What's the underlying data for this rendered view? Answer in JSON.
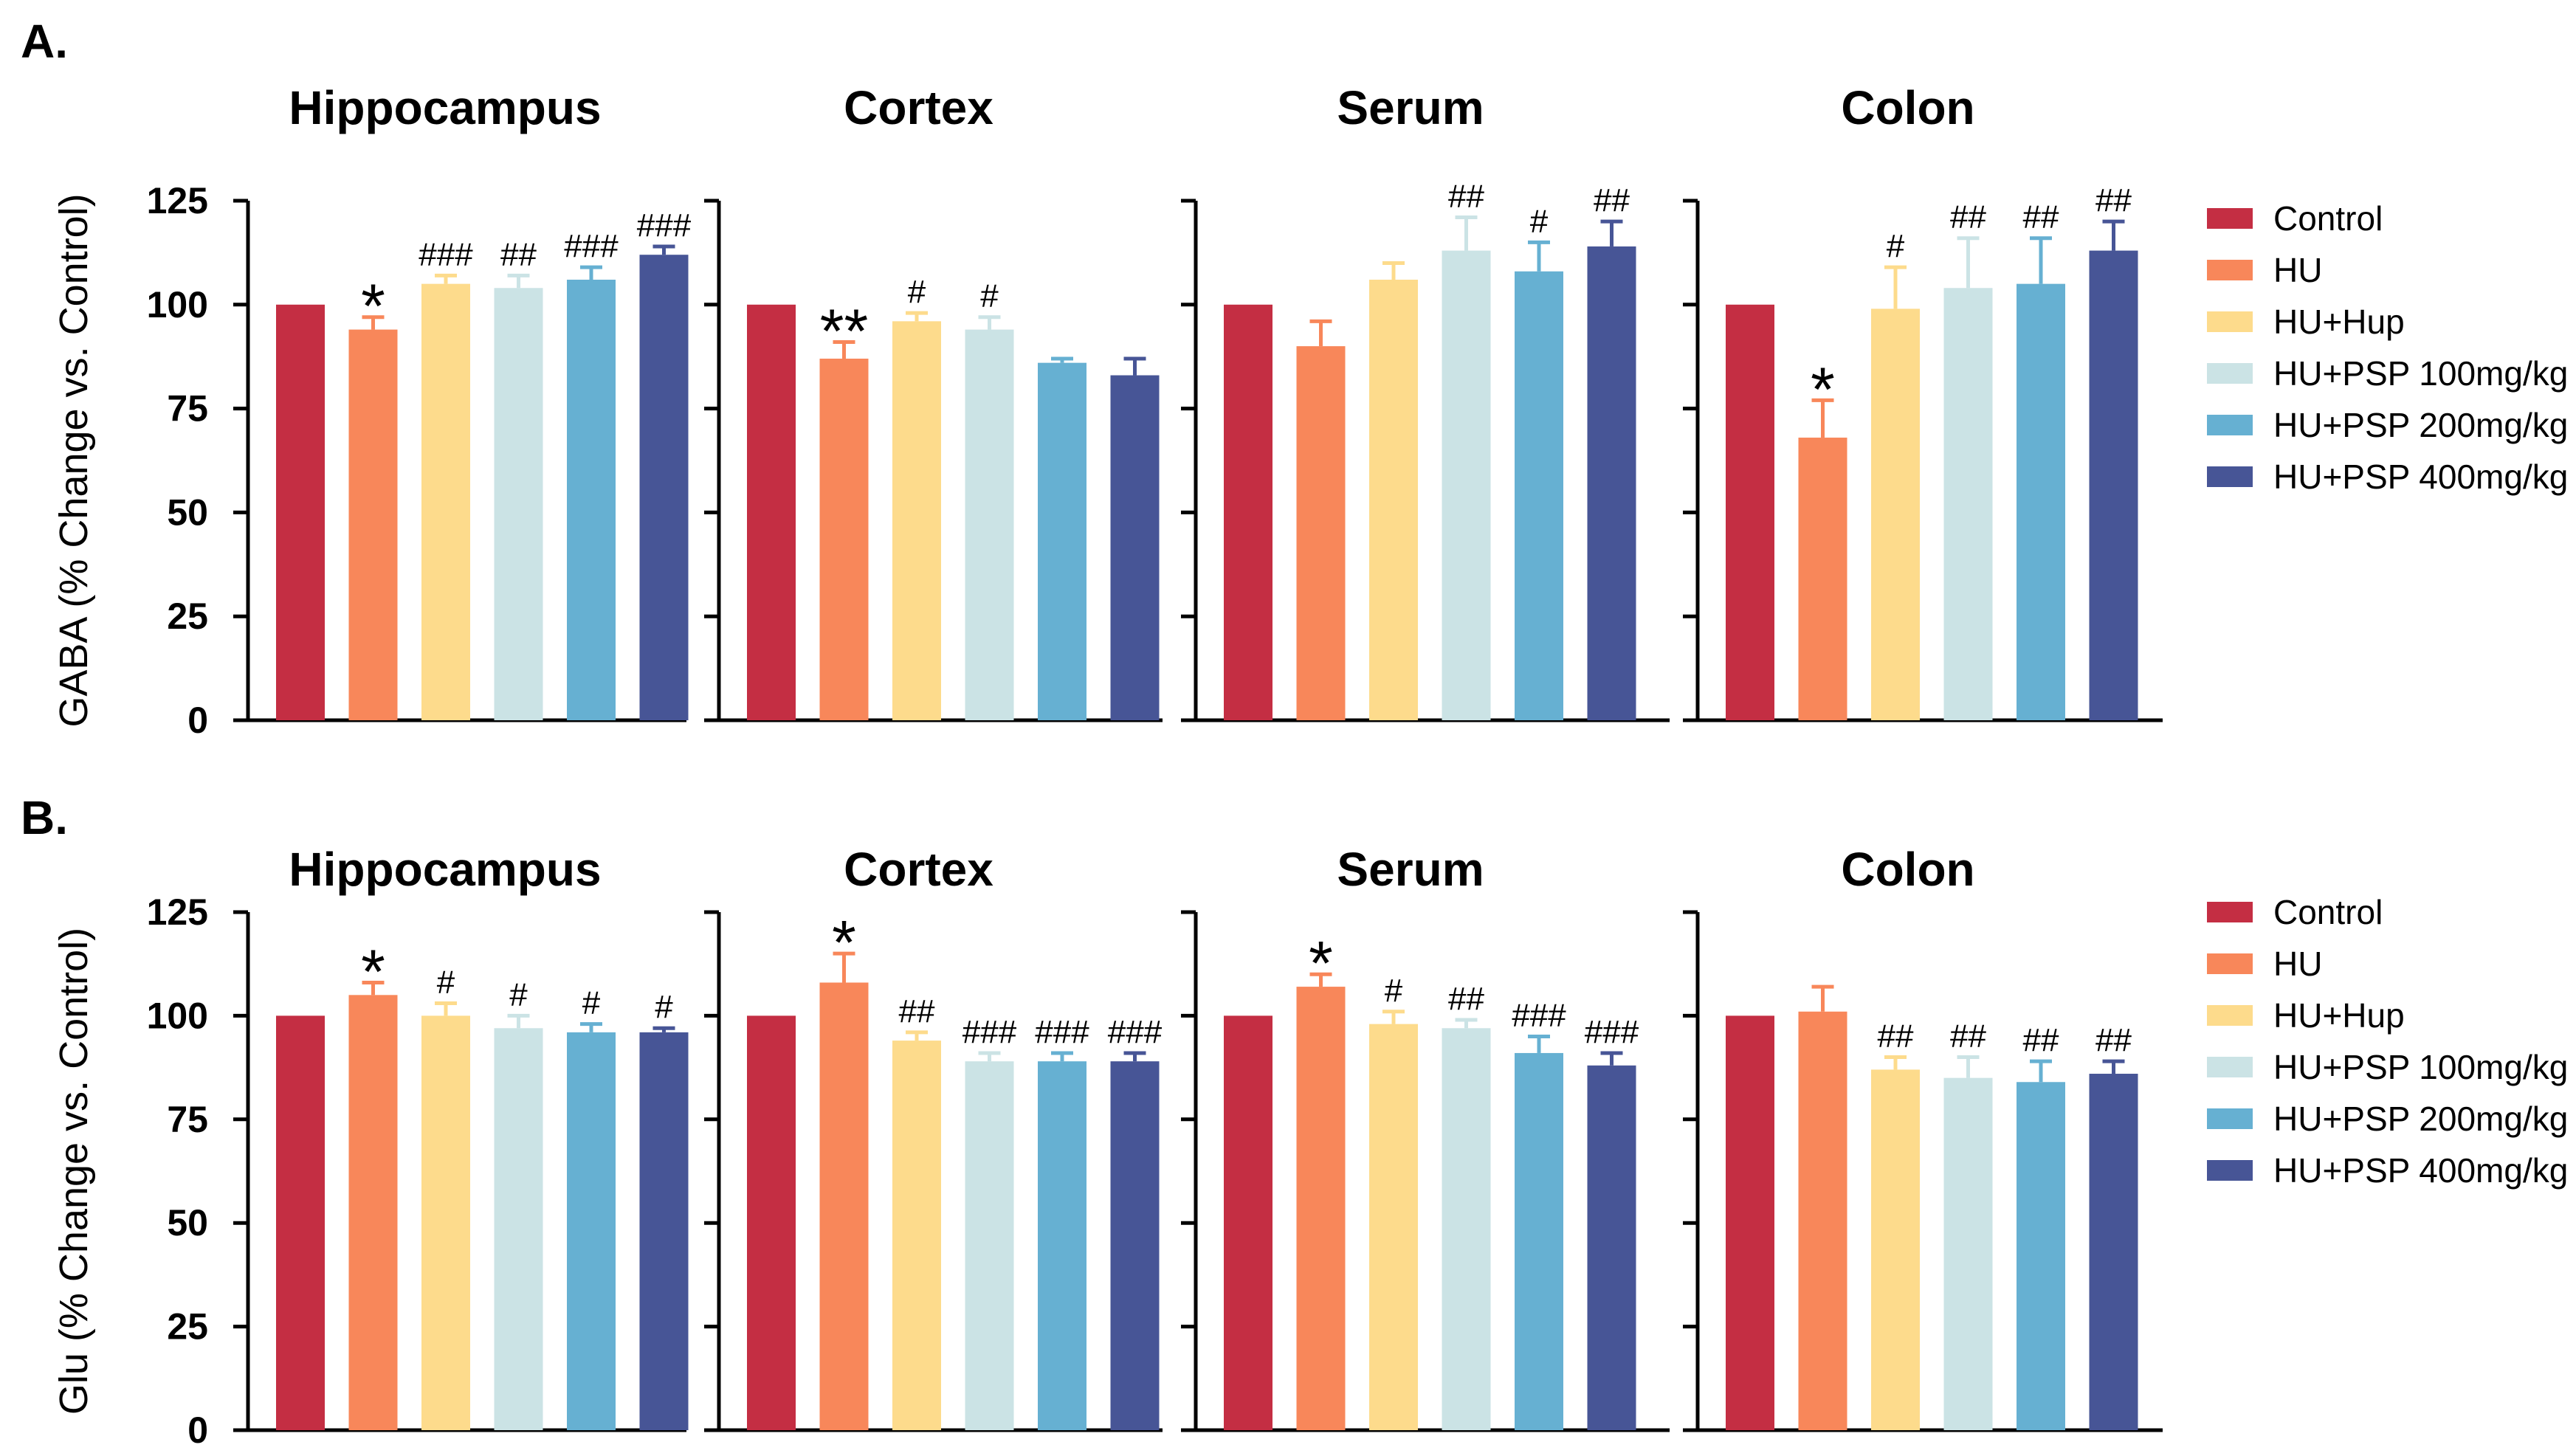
{
  "chart_data": [
    {
      "type": "bar",
      "panel_label": "A.",
      "ylabel": "GABA (% Change vs. Control)",
      "ylim": [
        0,
        125
      ],
      "yticks": [
        0,
        25,
        50,
        75,
        100,
        125
      ],
      "legend": [
        "Control",
        "HU",
        "HU+Hup",
        "HU+PSP 100mg/kg",
        "HU+PSP 200mg/kg",
        "HU+PSP 400mg/kg"
      ],
      "legend_position": "right",
      "colors": [
        "#c42e43",
        "#f8875a",
        "#fddb8c",
        "#cbe3e5",
        "#66b0d2",
        "#475596"
      ],
      "groups": [
        "Hippocampus",
        "Cortex",
        "Serum",
        "Colon"
      ],
      "series": [
        {
          "name": "Control",
          "values": [
            100,
            100,
            100,
            100
          ],
          "errors": [
            0,
            0,
            0,
            0
          ]
        },
        {
          "name": "HU",
          "values": [
            94,
            87,
            90,
            68
          ],
          "errors": [
            3,
            4,
            6,
            9
          ]
        },
        {
          "name": "HU+Hup",
          "values": [
            105,
            96,
            106,
            99
          ],
          "errors": [
            2,
            2,
            4,
            10
          ]
        },
        {
          "name": "HU+PSP 100mg/kg",
          "values": [
            104,
            94,
            113,
            104
          ],
          "errors": [
            3,
            3,
            8,
            12
          ]
        },
        {
          "name": "HU+PSP 200mg/kg",
          "values": [
            106,
            86,
            108,
            105
          ],
          "errors": [
            3,
            1,
            7,
            11
          ]
        },
        {
          "name": "HU+PSP 400mg/kg",
          "values": [
            112,
            83,
            114,
            113
          ],
          "errors": [
            2,
            4,
            6,
            7
          ]
        }
      ],
      "annotations": [
        [
          "",
          "*",
          "###",
          "##",
          "###",
          "###"
        ],
        [
          "",
          "**",
          "#",
          "#",
          "",
          ""
        ],
        [
          "",
          "",
          "",
          "##",
          "#",
          "##"
        ],
        [
          "",
          "*",
          "#",
          "##",
          "##",
          "##"
        ]
      ]
    },
    {
      "type": "bar",
      "panel_label": "B.",
      "ylabel": "Glu (% Change vs. Control)",
      "ylim": [
        0,
        125
      ],
      "yticks": [
        0,
        25,
        50,
        75,
        100,
        125
      ],
      "legend": [
        "Control",
        "HU",
        "HU+Hup",
        "HU+PSP 100mg/kg",
        "HU+PSP 200mg/kg",
        "HU+PSP 400mg/kg"
      ],
      "legend_position": "right",
      "colors": [
        "#c42e43",
        "#f8875a",
        "#fddb8c",
        "#cbe3e5",
        "#66b0d2",
        "#475596"
      ],
      "groups": [
        "Hippocampus",
        "Cortex",
        "Serum",
        "Colon"
      ],
      "series": [
        {
          "name": "Control",
          "values": [
            100,
            100,
            100,
            100
          ],
          "errors": [
            0,
            0,
            0,
            0
          ]
        },
        {
          "name": "HU",
          "values": [
            105,
            108,
            107,
            101
          ],
          "errors": [
            3,
            7,
            3,
            6
          ]
        },
        {
          "name": "HU+Hup",
          "values": [
            100,
            94,
            98,
            87
          ],
          "errors": [
            3,
            2,
            3,
            3
          ]
        },
        {
          "name": "HU+PSP 100mg/kg",
          "values": [
            97,
            89,
            97,
            85
          ],
          "errors": [
            3,
            2,
            2,
            5
          ]
        },
        {
          "name": "HU+PSP 200mg/kg",
          "values": [
            96,
            89,
            91,
            84
          ],
          "errors": [
            2,
            2,
            4,
            5
          ]
        },
        {
          "name": "HU+PSP 400mg/kg",
          "values": [
            96,
            89,
            88,
            86
          ],
          "errors": [
            1,
            2,
            3,
            3
          ]
        }
      ],
      "annotations": [
        [
          "",
          "*",
          "#",
          "#",
          "#",
          "#"
        ],
        [
          "",
          "*",
          "##",
          "###",
          "###",
          "###"
        ],
        [
          "",
          "*",
          "#",
          "##",
          "###",
          "###"
        ],
        [
          "",
          "",
          "##",
          "##",
          "##",
          "##"
        ]
      ]
    }
  ]
}
